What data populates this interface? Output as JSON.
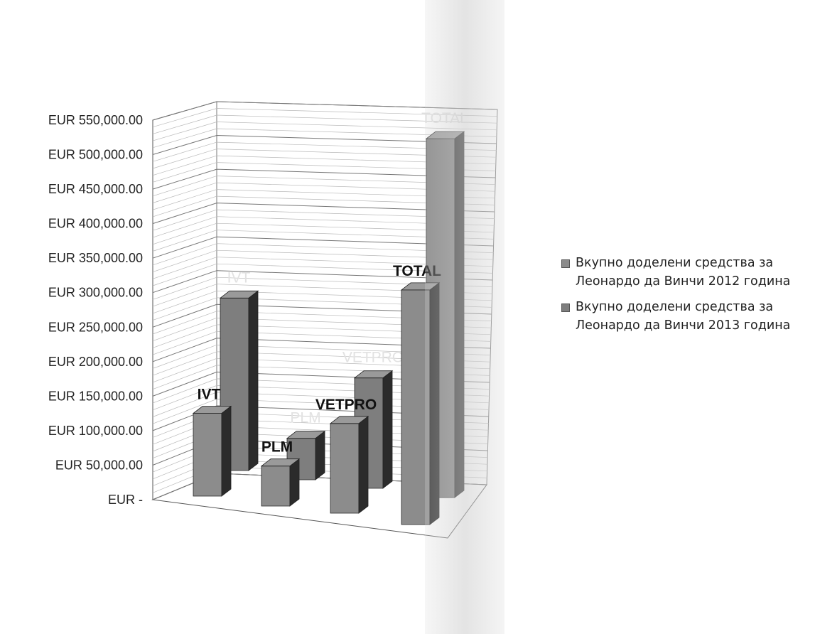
{
  "chart_data": {
    "type": "bar",
    "title": "",
    "xlabel": "",
    "ylabel": "",
    "ylim": [
      0,
      550000
    ],
    "grid": true,
    "legend_position": "right",
    "y_ticks": [
      "EUR 550,000.00",
      "EUR 500,000.00",
      "EUR 450,000.00",
      "EUR 400,000.00",
      "EUR 350,000.00",
      "EUR 300,000.00",
      "EUR 250,000.00",
      "EUR 200,000.00",
      "EUR 150,000.00",
      "EUR 100,000.00",
      "EUR 50,000.00",
      "EUR -"
    ],
    "categories": [
      "IVT",
      "PLM",
      "VETPRO",
      "TOTAL"
    ],
    "series": [
      {
        "name": "Вкупно доделени средства за Леонардо да Винчи 2012 година",
        "values": [
          120000,
          58000,
          130000,
          340000
        ],
        "color": "#8c8c8c",
        "labels": [
          "IVT",
          "PLM",
          "VETPRO",
          "TOTAL"
        ]
      },
      {
        "name": "Вкупно доделени средства за Леонардо да Винчи 2013 година",
        "values": [
          250000,
          60000,
          160000,
          520000
        ],
        "color": "#7e7e7e",
        "labels": [
          "IVT",
          "PLM",
          "VETPRO",
          "TOTAL"
        ]
      }
    ]
  }
}
